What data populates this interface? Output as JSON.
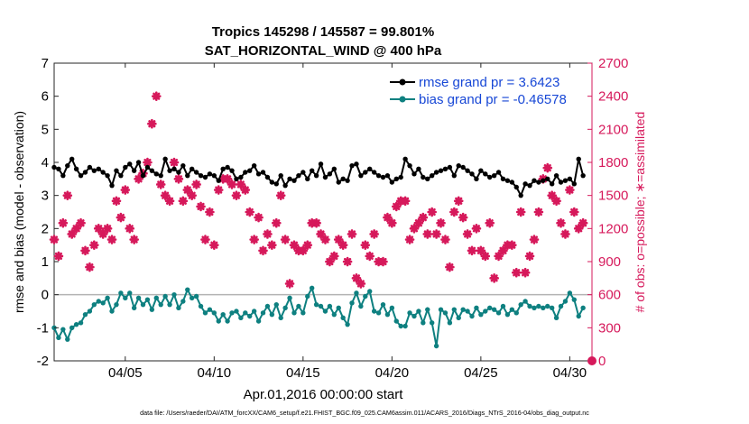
{
  "chart_data": {
    "type": "line",
    "title_line1": "Tropics 145298 / 145587 = 99.801%",
    "title_line2": "SAT_HORIZONTAL_WIND @ 400 hPa",
    "xlabel": "Apr.01,2016 00:00:00 start",
    "ylabel_left": "rmse and bias (model - observation)",
    "ylabel_right": "# of obs: o=possible; ∗=assimilated",
    "footnote": "data file: /Users/raeder/DAI/ATM_forcXX/CAM6_setup/f.e21.FHIST_BGC.f09_025.CAM6assim.011/ACARS_2016/Diags_NTrS_2016-04/obs_diag_output.nc",
    "xlim": [
      1,
      31.25
    ],
    "ylim_left": [
      -2,
      7
    ],
    "ylim_right": [
      0,
      2700
    ],
    "x_ticks": [
      5,
      10,
      15,
      20,
      25,
      30
    ],
    "x_tick_labels": [
      "04/05",
      "04/10",
      "04/15",
      "04/20",
      "04/25",
      "04/30"
    ],
    "left_ticks": [
      -2,
      -1,
      0,
      1,
      2,
      3,
      4,
      5,
      6,
      7
    ],
    "left_tick_labels": [
      "-2",
      "-1",
      "0",
      "1",
      "2",
      "3",
      "4",
      "5",
      "6",
      "7"
    ],
    "right_ticks": [
      0,
      300,
      600,
      900,
      1200,
      1500,
      1800,
      2100,
      2400,
      2700
    ],
    "right_tick_labels": [
      "0",
      "300",
      "600",
      "900",
      "1200",
      "1500",
      "1800",
      "2100",
      "2400",
      "2700"
    ],
    "zero_line": 0,
    "colors": {
      "rmse": "#000000",
      "bias": "#0e8080",
      "obs": "#d6195b",
      "legend_text": "#1747d6",
      "right_axis": "#d6195b",
      "zero_line": "#b3b3b3"
    },
    "legend": [
      {
        "name": "rmse grand pr = 3.6423",
        "series": "rmse"
      },
      {
        "name": "bias grand pr = -0.46578",
        "series": "bias"
      }
    ],
    "series": [
      {
        "name": "rmse",
        "x": [
          1.0,
          1.25,
          1.5,
          1.75,
          2.0,
          2.25,
          2.5,
          2.75,
          3.0,
          3.25,
          3.5,
          3.75,
          4.0,
          4.25,
          4.5,
          4.75,
          5.0,
          5.25,
          5.5,
          5.75,
          6.0,
          6.25,
          6.5,
          6.75,
          7.0,
          7.25,
          7.5,
          7.75,
          8.0,
          8.25,
          8.5,
          8.75,
          9.0,
          9.25,
          9.5,
          9.75,
          10.0,
          10.25,
          10.5,
          10.75,
          11.0,
          11.25,
          11.5,
          11.75,
          12.0,
          12.25,
          12.5,
          12.75,
          13.0,
          13.25,
          13.5,
          13.75,
          14.0,
          14.25,
          14.5,
          14.75,
          15.0,
          15.25,
          15.5,
          15.75,
          16.0,
          16.25,
          16.5,
          16.75,
          17.0,
          17.25,
          17.5,
          17.75,
          18.0,
          18.25,
          18.5,
          18.75,
          19.0,
          19.25,
          19.5,
          19.75,
          20.0,
          20.25,
          20.5,
          20.75,
          21.0,
          21.25,
          21.5,
          21.75,
          22.0,
          22.25,
          22.5,
          22.75,
          23.0,
          23.25,
          23.5,
          23.75,
          24.0,
          24.25,
          24.5,
          24.75,
          25.0,
          25.25,
          25.5,
          25.75,
          26.0,
          26.25,
          26.5,
          26.75,
          27.0,
          27.25,
          27.5,
          27.75,
          28.0,
          28.25,
          28.5,
          28.75,
          29.0,
          29.25,
          29.5,
          29.75,
          30.0,
          30.25,
          30.5,
          30.75
        ],
        "values": [
          3.85,
          3.8,
          3.6,
          3.9,
          4.1,
          3.8,
          3.6,
          3.7,
          3.85,
          3.75,
          3.8,
          3.7,
          3.6,
          3.3,
          3.75,
          3.6,
          3.85,
          3.95,
          3.75,
          4.0,
          3.6,
          3.85,
          3.75,
          3.65,
          3.6,
          4.1,
          3.75,
          3.8,
          3.7,
          3.9,
          3.6,
          3.8,
          3.7,
          3.6,
          3.55,
          3.65,
          3.6,
          3.45,
          3.8,
          3.85,
          3.75,
          3.5,
          3.55,
          3.7,
          3.75,
          3.9,
          3.65,
          3.7,
          3.55,
          3.4,
          3.35,
          3.6,
          3.3,
          3.5,
          3.45,
          3.6,
          3.7,
          3.5,
          3.75,
          3.6,
          3.95,
          3.55,
          3.65,
          3.8,
          3.4,
          3.5,
          3.45,
          3.9,
          3.95,
          3.6,
          3.7,
          3.8,
          3.7,
          3.6,
          3.55,
          3.6,
          3.4,
          3.5,
          3.55,
          4.1,
          3.9,
          3.65,
          3.8,
          3.55,
          3.5,
          3.6,
          3.7,
          3.75,
          3.8,
          3.85,
          3.6,
          3.9,
          3.85,
          3.75,
          3.65,
          3.5,
          3.75,
          3.65,
          3.55,
          3.6,
          3.7,
          3.5,
          3.45,
          3.4,
          3.25,
          3.0,
          3.35,
          3.3,
          3.45,
          3.4,
          3.45,
          3.5,
          3.35,
          3.6,
          3.4,
          3.45,
          3.5,
          3.35,
          4.1,
          3.6
        ],
        "marker": "dot"
      },
      {
        "name": "bias",
        "x": [
          1.0,
          1.25,
          1.5,
          1.75,
          2.0,
          2.25,
          2.5,
          2.75,
          3.0,
          3.25,
          3.5,
          3.75,
          4.0,
          4.25,
          4.5,
          4.75,
          5.0,
          5.25,
          5.5,
          5.75,
          6.0,
          6.25,
          6.5,
          6.75,
          7.0,
          7.25,
          7.5,
          7.75,
          8.0,
          8.25,
          8.5,
          8.75,
          9.0,
          9.25,
          9.5,
          9.75,
          10.0,
          10.25,
          10.5,
          10.75,
          11.0,
          11.25,
          11.5,
          11.75,
          12.0,
          12.25,
          12.5,
          12.75,
          13.0,
          13.25,
          13.5,
          13.75,
          14.0,
          14.25,
          14.5,
          14.75,
          15.0,
          15.25,
          15.5,
          15.75,
          16.0,
          16.25,
          16.5,
          16.75,
          17.0,
          17.25,
          17.5,
          17.75,
          18.0,
          18.25,
          18.5,
          18.75,
          19.0,
          19.25,
          19.5,
          19.75,
          20.0,
          20.25,
          20.5,
          20.75,
          21.0,
          21.25,
          21.5,
          21.75,
          22.0,
          22.25,
          22.5,
          22.75,
          23.0,
          23.25,
          23.5,
          23.75,
          24.0,
          24.25,
          24.5,
          24.75,
          25.0,
          25.25,
          25.5,
          25.75,
          26.0,
          26.25,
          26.5,
          26.75,
          27.0,
          27.25,
          27.5,
          27.75,
          28.0,
          28.25,
          28.5,
          28.75,
          29.0,
          29.25,
          29.5,
          29.75,
          30.0,
          30.25,
          30.5,
          30.75
        ],
        "values": [
          -1.0,
          -1.3,
          -1.05,
          -1.35,
          -1.0,
          -0.9,
          -0.85,
          -0.6,
          -0.5,
          -0.3,
          -0.2,
          -0.25,
          -0.1,
          -0.5,
          -0.3,
          0.05,
          -0.1,
          0.05,
          -0.4,
          -0.1,
          -0.3,
          -0.15,
          -0.45,
          -0.1,
          -0.3,
          -0.05,
          -0.3,
          0.0,
          -0.4,
          -0.2,
          0.15,
          -0.1,
          -0.05,
          -0.35,
          -0.55,
          -0.45,
          -0.55,
          -0.8,
          -0.6,
          -0.8,
          -0.55,
          -0.5,
          -0.7,
          -0.55,
          -0.65,
          -0.5,
          -0.8,
          -0.55,
          -0.35,
          -0.6,
          -0.3,
          -0.7,
          -0.4,
          -0.1,
          -0.55,
          -0.35,
          -0.55,
          -0.05,
          0.2,
          -0.3,
          -0.35,
          -0.5,
          -0.35,
          -0.6,
          -0.4,
          -0.7,
          -0.9,
          -0.25,
          0.05,
          -0.35,
          -0.05,
          0.1,
          -0.5,
          -0.55,
          -0.3,
          -0.6,
          -0.4,
          -0.8,
          -0.95,
          -0.95,
          -0.55,
          -0.65,
          -0.5,
          -0.85,
          -0.45,
          -0.85,
          -1.55,
          -0.45,
          -0.55,
          -0.85,
          -0.45,
          -0.7,
          -0.45,
          -0.5,
          -0.65,
          -0.4,
          -0.6,
          -0.5,
          -0.4,
          -0.45,
          -0.55,
          -0.35,
          -0.6,
          -0.45,
          -0.55,
          -0.3,
          -0.2,
          -0.35,
          -0.4,
          -0.35,
          -0.4,
          -0.35,
          -0.4,
          -0.7,
          -0.35,
          -0.2,
          0.05,
          -0.15,
          -0.65,
          -0.4
        ],
        "marker": "dot"
      },
      {
        "name": "obs assimilated",
        "axis": "right",
        "x": [
          1.0,
          1.25,
          1.5,
          1.75,
          2.0,
          2.25,
          2.5,
          2.75,
          3.0,
          3.25,
          3.5,
          3.75,
          4.0,
          4.25,
          4.5,
          4.75,
          5.0,
          5.25,
          5.5,
          5.75,
          6.0,
          6.25,
          6.5,
          6.75,
          7.0,
          7.25,
          7.5,
          7.75,
          8.0,
          8.25,
          8.5,
          8.75,
          9.0,
          9.25,
          9.5,
          9.75,
          10.0,
          10.25,
          10.5,
          10.75,
          11.0,
          11.25,
          11.5,
          11.75,
          12.0,
          12.25,
          12.5,
          12.75,
          13.0,
          13.25,
          13.5,
          13.75,
          14.0,
          14.25,
          14.5,
          14.75,
          15.0,
          15.25,
          15.5,
          15.75,
          16.0,
          16.25,
          16.5,
          16.75,
          17.0,
          17.25,
          17.5,
          17.75,
          18.0,
          18.25,
          18.5,
          18.75,
          19.0,
          19.25,
          19.5,
          19.75,
          20.0,
          20.25,
          20.5,
          20.75,
          21.0,
          21.25,
          21.5,
          21.75,
          22.0,
          22.25,
          22.5,
          22.75,
          23.0,
          23.25,
          23.5,
          23.75,
          24.0,
          24.25,
          24.5,
          24.75,
          25.0,
          25.25,
          25.5,
          25.75,
          26.0,
          26.25,
          26.5,
          26.75,
          27.0,
          27.25,
          27.5,
          27.75,
          28.0,
          28.25,
          28.5,
          28.75,
          29.0,
          29.25,
          29.5,
          29.75,
          30.0,
          30.25,
          30.5,
          30.75
        ],
        "values": [
          1100,
          950,
          1250,
          1500,
          1150,
          1200,
          1250,
          1000,
          850,
          1050,
          1200,
          1150,
          1200,
          1100,
          1450,
          1300,
          1550,
          1200,
          1100,
          1650,
          1700,
          1800,
          2150,
          2400,
          1600,
          1500,
          1450,
          1800,
          1650,
          1450,
          1550,
          1500,
          1600,
          1400,
          1100,
          1350,
          1050,
          1550,
          1650,
          1650,
          1600,
          1500,
          1600,
          1550,
          1350,
          1100,
          1300,
          1000,
          1150,
          1050,
          1250,
          1500,
          1100,
          700,
          1050,
          1000,
          1000,
          1050,
          1250,
          1250,
          1150,
          1100,
          900,
          950,
          1100,
          1050,
          900,
          1150,
          750,
          700,
          1050,
          950,
          1150,
          900,
          900,
          1300,
          1250,
          1400,
          1450,
          1450,
          1100,
          1200,
          1250,
          1300,
          1150,
          1350,
          1150,
          1250,
          1100,
          850,
          1350,
          1450,
          1300,
          1150,
          1000,
          1200,
          1000,
          950,
          1250,
          750,
          950,
          1000,
          1050,
          1050,
          800,
          1350,
          800,
          950,
          1100,
          1350,
          1650,
          1750,
          1500,
          1450,
          1250,
          1150,
          1550,
          1350,
          1200,
          1250
        ],
        "marker": "star"
      }
    ]
  }
}
